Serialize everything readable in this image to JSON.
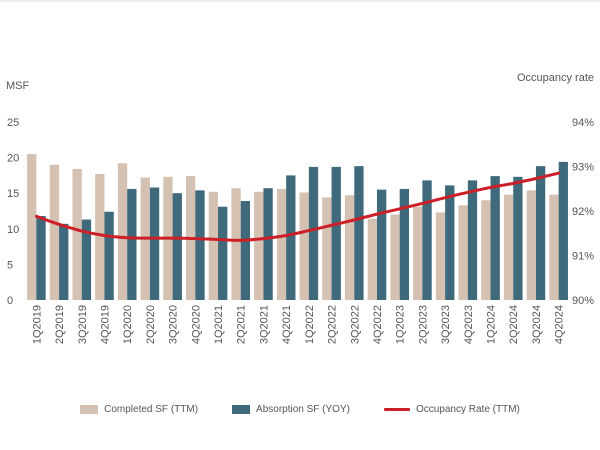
{
  "colors": {
    "completed": "#d4c1b1",
    "absorption": "#3e6a7b",
    "occupancy": "#cc1f27",
    "text": "#555555"
  },
  "chart_data": {
    "type": "bar",
    "left_axis_label": "MSF",
    "right_axis_label": "Occupancy rate",
    "categories": [
      "1Q2019",
      "2Q2019",
      "3Q2019",
      "4Q2019",
      "1Q2020",
      "2Q2020",
      "3Q2020",
      "4Q2020",
      "1Q2021",
      "2Q2021",
      "3Q2021",
      "4Q2021",
      "1Q2022",
      "2Q2022",
      "3Q2022",
      "4Q2022",
      "1Q2023",
      "2Q2023",
      "3Q2023",
      "4Q2023",
      "1Q2024",
      "2Q2024",
      "3Q2024",
      "4Q2024"
    ],
    "series": [
      {
        "name": "Completed SF (TTM)",
        "type": "bar",
        "axis": "left",
        "values": [
          20.5,
          19.0,
          18.4,
          17.7,
          19.2,
          17.2,
          17.3,
          17.4,
          15.2,
          15.7,
          15.2,
          15.6,
          15.1,
          14.4,
          14.7,
          11.4,
          12.0,
          13.1,
          12.3,
          13.3,
          14.0,
          14.8,
          15.4,
          14.8
        ]
      },
      {
        "name": "Absorption SF (YOY)",
        "type": "bar",
        "axis": "left",
        "values": [
          11.8,
          10.7,
          11.3,
          12.4,
          15.6,
          15.8,
          15.0,
          15.4,
          13.1,
          13.9,
          15.7,
          17.5,
          18.7,
          18.7,
          18.8,
          15.5,
          15.6,
          16.8,
          16.1,
          16.8,
          17.4,
          17.3,
          18.8,
          19.4
        ]
      },
      {
        "name": "Occupancy Rate (TTM)",
        "type": "line",
        "axis": "right",
        "values": [
          91.88,
          91.7,
          91.55,
          91.45,
          91.4,
          91.39,
          91.39,
          91.38,
          91.36,
          91.34,
          91.38,
          91.45,
          91.56,
          91.68,
          91.8,
          91.93,
          92.05,
          92.17,
          92.3,
          92.42,
          92.53,
          92.62,
          92.73,
          92.85
        ]
      }
    ],
    "left_axis": {
      "min": 0,
      "max": 25,
      "ticks": [
        "0",
        "5",
        "10",
        "15",
        "20",
        "25"
      ]
    },
    "right_axis": {
      "min": 90,
      "max": 94,
      "ticks": [
        "90%",
        "91%",
        "92%",
        "93%",
        "94%"
      ]
    },
    "legend_placement": "bottom",
    "grid": false
  }
}
